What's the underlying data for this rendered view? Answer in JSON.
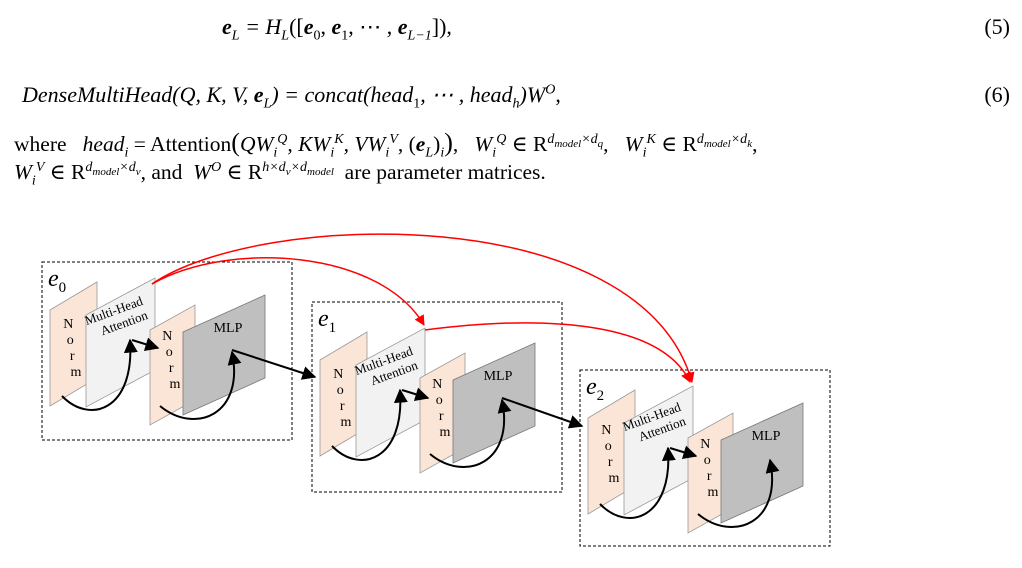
{
  "equations": [
    {
      "lhs_sym": "e",
      "lhs_sub": "L",
      "rhs_func": " = H",
      "rhs_func_sub": "L",
      "rhs_open": "([",
      "rhs_e0": "e",
      "rhs_e0_sub": "0",
      "rhs_e1": "e",
      "rhs_e1_sub": "1",
      "rhs_dots": ", ⋯ , ",
      "rhs_eL": "e",
      "rhs_eL_sub": "L−1",
      "rhs_close": "]),",
      "number": "(5)"
    },
    {
      "lhs": "DenseMultiHead(Q, K, V, ",
      "lhs_e": "e",
      "lhs_e_sub": "L",
      "rhs": ") = concat(head",
      "rhs_sub1": "1",
      "rhs_mid": ", ⋯ , head",
      "rhs_sub_h": "h",
      "rhs_end": ")W",
      "rhs_sup": "O",
      "rhs_tail": ",",
      "number": "(6)"
    }
  ],
  "paragraph": {
    "line1_where": "where",
    "line1_head": "head",
    "line1_head_sub": "i",
    "line1_eq": " = ",
    "line1_attention": "Attention",
    "line1_args": "(QW",
    "q_sub": "i",
    "q_sup": "Q",
    "k_pre": ", KW",
    "k_sub": "i",
    "k_sup": "K",
    "v_pre": ", VW",
    "v_sub": "i",
    "v_sup": "V",
    "e_pre": ", (",
    "e_sym": "e",
    "e_sub": "L",
    "e_post": ")",
    "e_post_sub": "i",
    "args_close": ")",
    "wq": "W",
    "wq_sub": "i",
    "wq_sup": "Q",
    "wq_in": " ∈ R",
    "wq_dim": "d",
    "wq_dim_model": "model",
    "wq_dim_x": "×d",
    "wq_dim_q": "q",
    "wk": "W",
    "wk_sub": "i",
    "wk_sup": "K",
    "wk_in": " ∈ R",
    "wk_dim": "d",
    "wk_dim_model": "model",
    "wk_dim_x": "×d",
    "wk_dim_k": "k",
    "line2_wv": "W",
    "line2_wv_sub": "i",
    "line2_wv_sup": "V",
    "line2_wv_in": " ∈ R",
    "line2_wv_dim": "d",
    "line2_wv_dim_model": "model",
    "line2_wv_dim_x": "×d",
    "line2_wv_dim_v": "v",
    "line2_and": ", and ",
    "line2_wo": "W",
    "line2_wo_sup": "O",
    "line2_wo_in": " ∈ R",
    "line2_wo_dim": "h×d",
    "line2_wo_dim_v": "v",
    "line2_wo_dim_x": "×d",
    "line2_wo_dim_model": "model",
    "line2_tail": " are parameter matrices."
  },
  "figure": {
    "blocks": [
      {
        "label": "e",
        "label_sub": "0"
      },
      {
        "label": "e",
        "label_sub": "1"
      },
      {
        "label": "e",
        "label_sub": "2"
      }
    ],
    "norm_letters": [
      "N",
      "o",
      "r",
      "m"
    ],
    "attention_line1": "Multi-Head",
    "attention_line2": "Attention",
    "mlp_label": "MLP",
    "colors": {
      "norm_fill": "#fbe5d6",
      "attention_fill": "#f2f2f2",
      "mlp_fill": "#bfbfbf",
      "dense_arrow": "#ff0000",
      "arrow": "#000000"
    }
  }
}
